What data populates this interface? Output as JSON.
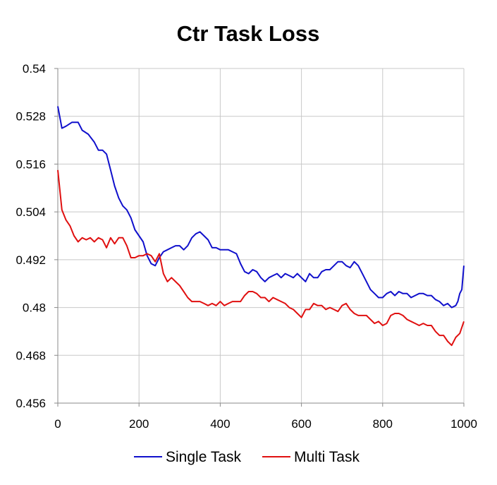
{
  "chart_data": {
    "type": "line",
    "title": "Ctr Task Loss",
    "xlabel": "",
    "ylabel": "",
    "xlim": [
      0,
      1000
    ],
    "ylim": [
      0.456,
      0.54
    ],
    "x_ticks": [
      0,
      200,
      400,
      600,
      800,
      1000
    ],
    "x_tick_labels": [
      "0",
      "200",
      "400",
      "600",
      "800",
      "1000"
    ],
    "y_ticks": [
      0.456,
      0.468,
      0.48,
      0.492,
      0.504,
      0.516,
      0.528,
      0.54
    ],
    "y_tick_labels": [
      "0.456",
      "0.468",
      "0.48",
      "0.492",
      "0.504",
      "0.516",
      "0.528",
      "0.54"
    ],
    "grid": true,
    "legend_position": "bottom-center",
    "series": [
      {
        "name": "Single Task",
        "color": "#1010cc",
        "x": [
          0,
          10,
          20,
          35,
          50,
          60,
          75,
          90,
          100,
          110,
          120,
          130,
          140,
          150,
          160,
          170,
          180,
          190,
          200,
          210,
          220,
          230,
          240,
          250,
          260,
          270,
          280,
          290,
          300,
          310,
          320,
          330,
          340,
          350,
          360,
          370,
          380,
          390,
          400,
          410,
          420,
          430,
          440,
          450,
          460,
          470,
          480,
          490,
          500,
          510,
          520,
          530,
          540,
          550,
          560,
          570,
          580,
          590,
          600,
          610,
          620,
          630,
          640,
          650,
          660,
          670,
          680,
          690,
          700,
          710,
          720,
          730,
          740,
          750,
          760,
          770,
          780,
          790,
          800,
          810,
          820,
          830,
          840,
          850,
          860,
          870,
          880,
          890,
          900,
          910,
          920,
          930,
          940,
          950,
          960,
          970,
          980,
          985,
          990,
          995,
          1000
        ],
        "y": [
          0.5305,
          0.525,
          0.5255,
          0.5265,
          0.5265,
          0.5245,
          0.5235,
          0.5215,
          0.5195,
          0.5195,
          0.5185,
          0.5145,
          0.5105,
          0.5075,
          0.5055,
          0.5045,
          0.5025,
          0.4995,
          0.498,
          0.4965,
          0.493,
          0.491,
          0.4905,
          0.4925,
          0.494,
          0.4945,
          0.495,
          0.4955,
          0.4955,
          0.4945,
          0.4955,
          0.4975,
          0.4985,
          0.499,
          0.498,
          0.497,
          0.495,
          0.495,
          0.4945,
          0.4945,
          0.4945,
          0.494,
          0.4935,
          0.491,
          0.489,
          0.4885,
          0.4895,
          0.489,
          0.4875,
          0.4865,
          0.4875,
          0.488,
          0.4885,
          0.4875,
          0.4885,
          0.488,
          0.4875,
          0.4885,
          0.4875,
          0.4865,
          0.4885,
          0.4875,
          0.4875,
          0.489,
          0.4895,
          0.4895,
          0.4905,
          0.4915,
          0.4915,
          0.4905,
          0.49,
          0.4915,
          0.4905,
          0.4885,
          0.4865,
          0.4845,
          0.4835,
          0.4825,
          0.4825,
          0.4835,
          0.484,
          0.483,
          0.484,
          0.4835,
          0.4835,
          0.4825,
          0.483,
          0.4835,
          0.4835,
          0.483,
          0.483,
          0.482,
          0.4815,
          0.4805,
          0.481,
          0.48,
          0.4805,
          0.4815,
          0.4835,
          0.4845,
          0.4905
        ]
      },
      {
        "name": "Multi Task",
        "color": "#e01010",
        "x": [
          0,
          5,
          10,
          20,
          30,
          40,
          50,
          60,
          70,
          80,
          90,
          100,
          110,
          120,
          130,
          140,
          150,
          160,
          170,
          180,
          190,
          200,
          210,
          220,
          230,
          240,
          250,
          260,
          270,
          280,
          290,
          300,
          310,
          320,
          330,
          340,
          350,
          360,
          370,
          380,
          390,
          400,
          410,
          420,
          430,
          440,
          450,
          460,
          470,
          480,
          490,
          500,
          510,
          520,
          530,
          540,
          550,
          560,
          570,
          580,
          590,
          600,
          610,
          620,
          630,
          640,
          650,
          660,
          670,
          680,
          690,
          700,
          710,
          720,
          730,
          740,
          750,
          760,
          770,
          780,
          790,
          800,
          810,
          820,
          830,
          840,
          850,
          860,
          870,
          880,
          890,
          900,
          910,
          920,
          930,
          940,
          950,
          960,
          970,
          980,
          990,
          1000
        ],
        "y": [
          0.5145,
          0.5095,
          0.5045,
          0.502,
          0.5005,
          0.498,
          0.4965,
          0.4975,
          0.497,
          0.4975,
          0.4965,
          0.4975,
          0.497,
          0.495,
          0.4975,
          0.496,
          0.4975,
          0.4975,
          0.4955,
          0.4925,
          0.4925,
          0.493,
          0.493,
          0.4935,
          0.493,
          0.4915,
          0.4935,
          0.4885,
          0.4865,
          0.4875,
          0.4865,
          0.4855,
          0.484,
          0.4825,
          0.4815,
          0.4815,
          0.4815,
          0.481,
          0.4805,
          0.481,
          0.4805,
          0.4815,
          0.4805,
          0.481,
          0.4815,
          0.4815,
          0.4815,
          0.483,
          0.484,
          0.484,
          0.4835,
          0.4825,
          0.4825,
          0.4815,
          0.4825,
          0.482,
          0.4815,
          0.481,
          0.48,
          0.4795,
          0.4785,
          0.4775,
          0.4795,
          0.4795,
          0.481,
          0.4805,
          0.4805,
          0.4795,
          0.48,
          0.4795,
          0.479,
          0.4805,
          0.481,
          0.4795,
          0.4785,
          0.478,
          0.478,
          0.478,
          0.477,
          0.476,
          0.4765,
          0.4755,
          0.476,
          0.478,
          0.4785,
          0.4785,
          0.478,
          0.477,
          0.4765,
          0.476,
          0.4755,
          0.476,
          0.4755,
          0.4755,
          0.474,
          0.473,
          0.473,
          0.4715,
          0.4705,
          0.4725,
          0.4735,
          0.4765
        ]
      }
    ]
  }
}
